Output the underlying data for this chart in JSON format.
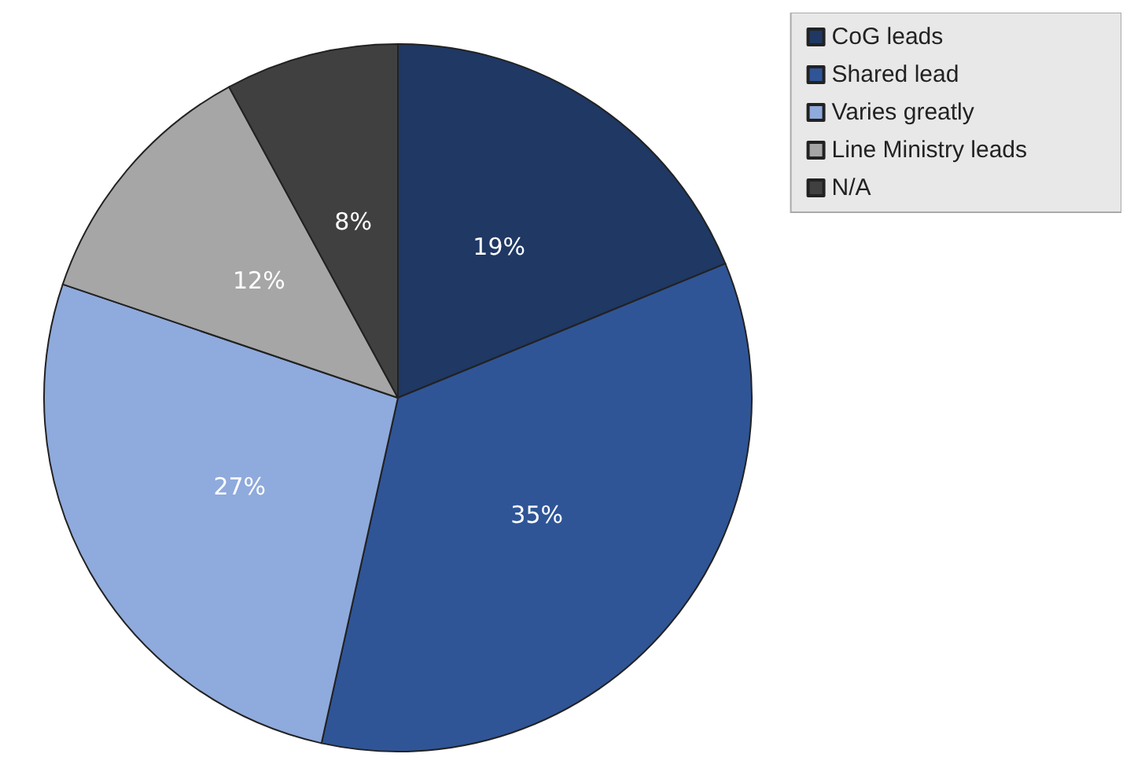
{
  "chart_data": {
    "type": "pie",
    "categories": [
      "CoG leads",
      "Shared lead",
      "Varies greatly",
      "Line Ministry leads",
      "N/A"
    ],
    "values": [
      19,
      35,
      27,
      12,
      8
    ],
    "value_labels": [
      "19%",
      "35%",
      "27%",
      "12%",
      "8%"
    ],
    "colors": [
      "#1f3864",
      "#2f5597",
      "#8faadc",
      "#a6a6a6",
      "#404040"
    ],
    "legend": "top right"
  }
}
